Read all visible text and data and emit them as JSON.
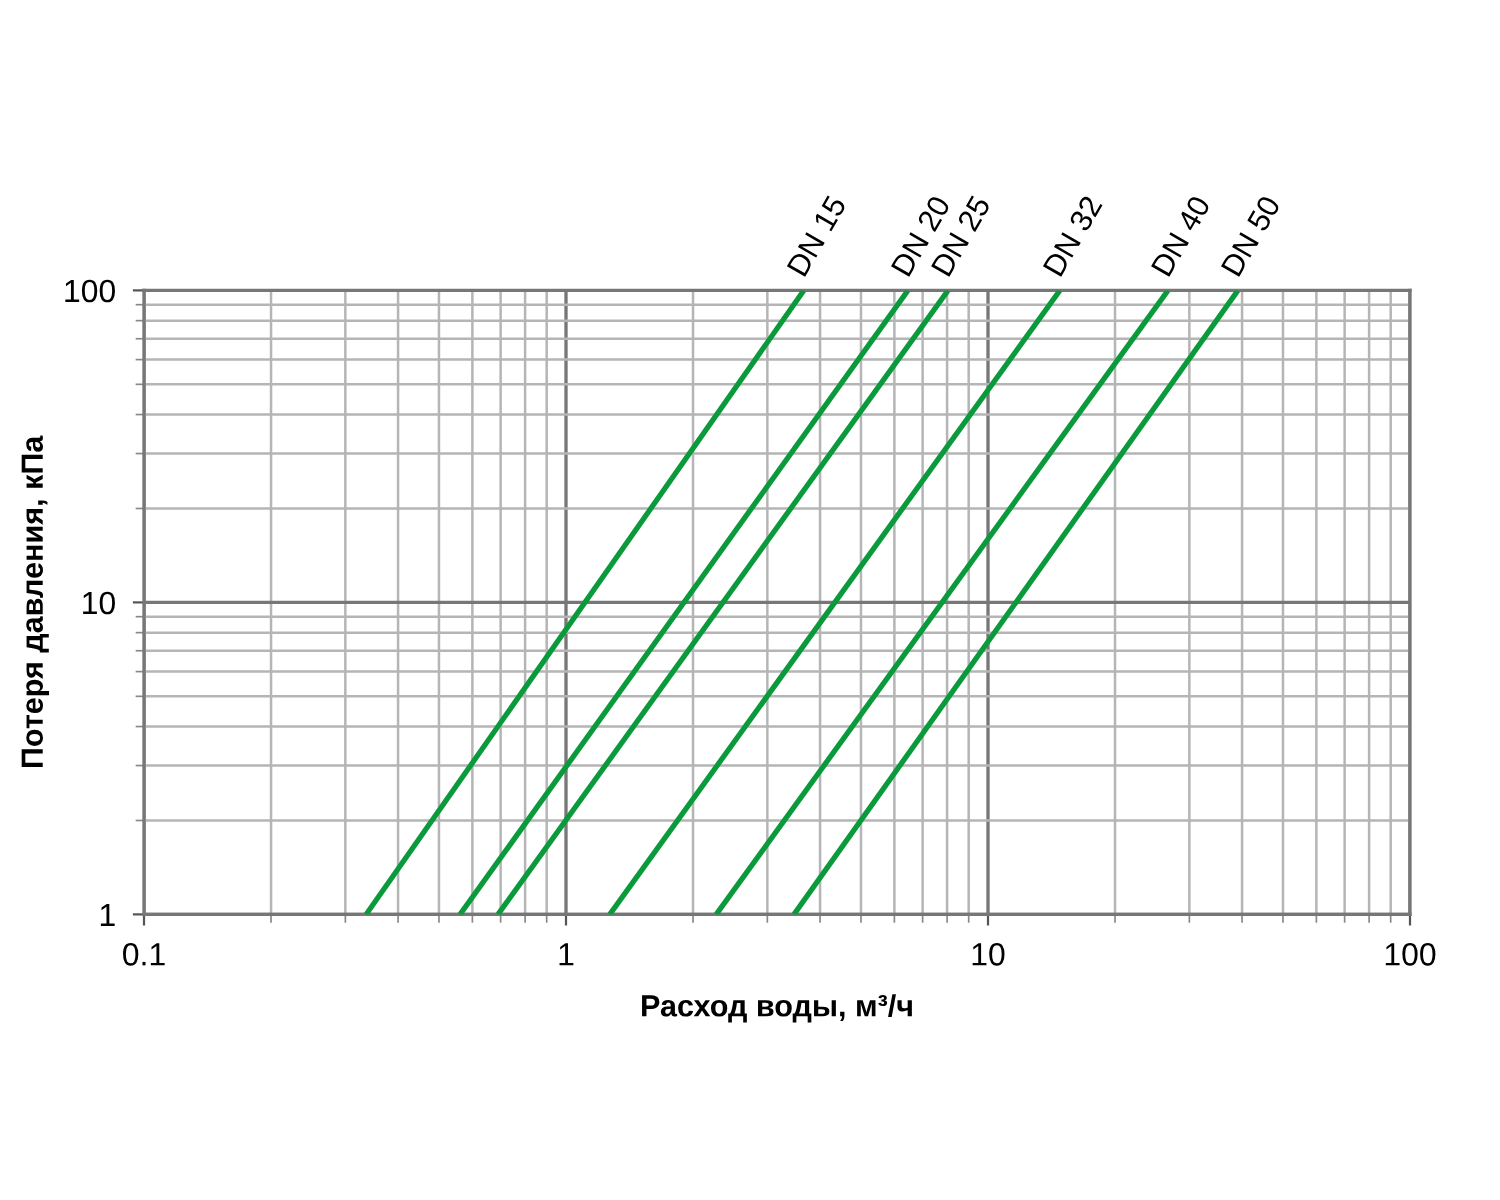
{
  "chart_data": {
    "type": "line",
    "xlabel": "Расход воды, м³/ч",
    "ylabel": "Потеря давления, кПа",
    "log": "xy",
    "xlim": [
      0.1,
      100
    ],
    "ylim": [
      1,
      100
    ],
    "xticks": [
      0.1,
      1,
      10,
      100
    ],
    "yticks": [
      1,
      10,
      100
    ],
    "grid": true,
    "legend": false,
    "marker": "none",
    "line_style": "solid",
    "series": [
      {
        "name": "DN 15",
        "color": "#0a9a3c",
        "x": [
          0.336,
          3.66
        ],
        "values": [
          1,
          100
        ]
      },
      {
        "name": "DN 20",
        "color": "#0a9a3c",
        "x": [
          0.561,
          6.46
        ],
        "values": [
          1,
          100
        ]
      },
      {
        "name": "DN 25",
        "color": "#0a9a3c",
        "x": [
          0.69,
          8.04
        ],
        "values": [
          1,
          100
        ]
      },
      {
        "name": "DN 32",
        "color": "#0a9a3c",
        "x": [
          1.27,
          14.8
        ],
        "values": [
          1,
          100
        ]
      },
      {
        "name": "DN 40",
        "color": "#0a9a3c",
        "x": [
          2.27,
          26.7
        ],
        "values": [
          1,
          100
        ]
      },
      {
        "name": "DN 50",
        "color": "#0a9a3c",
        "x": [
          3.47,
          39.1
        ],
        "values": [
          1,
          100
        ]
      }
    ]
  }
}
